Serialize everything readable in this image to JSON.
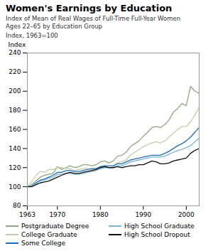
{
  "chart_data": {
    "type": "line",
    "title": "Women's Earnings by Education",
    "subtitle": [
      "Index of Mean of Real Wages of Full-Time Full-Year Women",
      "Ages 22–65 by Education Group"
    ],
    "annotations": [
      "Index, 1963=100"
    ],
    "ylabel": "Index",
    "x": [
      1963,
      1964,
      1965,
      1966,
      1967,
      1968,
      1969,
      1970,
      1971,
      1972,
      1973,
      1974,
      1975,
      1976,
      1977,
      1978,
      1979,
      1980,
      1981,
      1982,
      1983,
      1984,
      1985,
      1986,
      1987,
      1988,
      1989,
      1990,
      1991,
      1992,
      1993,
      1994,
      1995,
      1996,
      1997,
      1998,
      1999,
      2000,
      2001,
      2002,
      2003
    ],
    "xlim": [
      1963,
      2003
    ],
    "xticks": [
      1963,
      1970,
      1980,
      1990,
      2000
    ],
    "ylim": [
      80,
      240
    ],
    "yticks": [
      80,
      100,
      120,
      140,
      160,
      180,
      200,
      220,
      240
    ],
    "grid": false,
    "legend": "bottom",
    "series": [
      {
        "name": "Postgraduate Degree",
        "color": "#8fa882",
        "values": [
          100,
          102,
          106,
          110,
          112,
          113,
          114,
          121,
          118,
          120,
          122,
          120,
          121,
          123,
          123,
          122,
          123,
          126,
          127,
          125,
          127,
          132,
          133,
          136,
          142,
          145,
          148,
          153,
          157,
          162,
          163,
          162,
          165,
          170,
          178,
          182,
          187,
          185,
          205,
          200,
          198
        ]
      },
      {
        "name": "College Graduate",
        "color": "#bfcfaa",
        "values": [
          100,
          105,
          112,
          116,
          115,
          118,
          118,
          120,
          120,
          119,
          119,
          117,
          118,
          119,
          119,
          118,
          118,
          121,
          122,
          120,
          121,
          125,
          126,
          128,
          133,
          136,
          139,
          142,
          144,
          146,
          147,
          146,
          148,
          152,
          156,
          160,
          163,
          163,
          168,
          175,
          183
        ]
      },
      {
        "name": "Some College",
        "color": "#1f6fbf",
        "values": [
          100,
          101,
          104,
          107,
          108,
          110,
          112,
          115,
          115,
          117,
          117,
          116,
          116,
          117,
          118,
          119,
          119,
          121,
          122,
          122,
          122,
          124,
          124,
          126,
          128,
          129,
          130,
          131,
          132,
          133,
          133,
          133,
          135,
          137,
          140,
          143,
          145,
          148,
          152,
          157,
          162
        ]
      },
      {
        "name": "High School Graduate",
        "color": "#7ab4dc",
        "values": [
          100,
          101,
          103,
          106,
          107,
          109,
          110,
          113,
          113,
          114,
          114,
          113,
          113,
          114,
          115,
          116,
          117,
          119,
          120,
          120,
          120,
          122,
          122,
          124,
          126,
          127,
          128,
          129,
          130,
          131,
          131,
          131,
          132,
          134,
          136,
          138,
          139,
          141,
          143,
          147,
          151
        ]
      },
      {
        "name": "High School Dropout",
        "color": "#111111",
        "values": [
          100,
          100,
          102,
          104,
          105,
          106,
          108,
          110,
          112,
          114,
          115,
          114,
          114,
          115,
          116,
          117,
          118,
          120,
          121,
          120,
          120,
          121,
          120,
          121,
          122,
          122,
          123,
          123,
          125,
          127,
          126,
          124,
          124,
          125,
          127,
          128,
          129,
          130,
          135,
          138,
          140
        ]
      }
    ]
  }
}
